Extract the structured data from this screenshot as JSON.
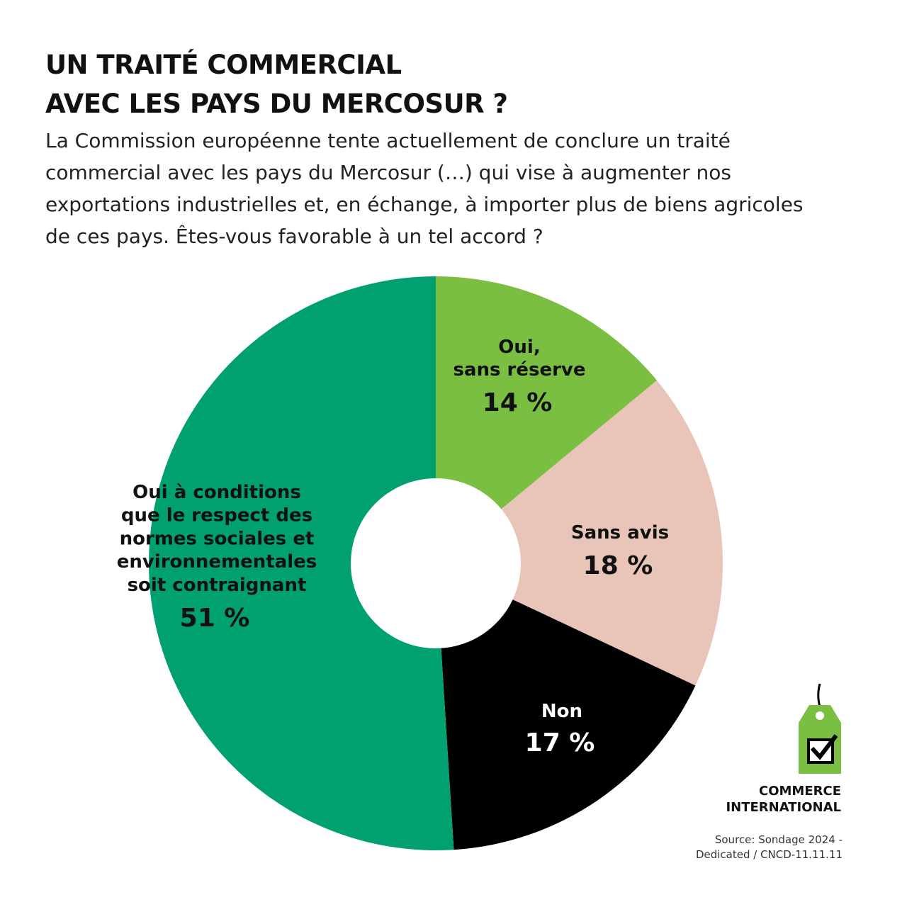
{
  "chart_data": {
    "type": "donut",
    "title": "UN TRAITÉ COMMERCIAL\nAVEC LES PAYS DU MERCOSUR ?",
    "subtitle": "La Commission européenne tente actuellement de conclure un traité commercial avec les pays du Mercosur (…) qui vise à augmenter nos exportations industrielles et, en échange, à importer plus de biens agricoles de ces pays. Êtes-vous favorable à un tel accord ?",
    "categories": [
      "Oui,\nsans réserve",
      "Sans avis",
      "Non",
      "Oui à conditions\nque le respect des\nnormes sociales et\nenvironnementales\nsoit contraignant"
    ],
    "values": [
      14,
      18,
      17,
      51
    ],
    "value_labels": [
      "14 %",
      "18 %",
      "17 %",
      "51 %"
    ],
    "colors": [
      "#7bbf42",
      "#e8c5b8",
      "#000000",
      "#00a070"
    ],
    "logo_text": "COMMERCE\nINTERNATIONAL",
    "source": "Source: Sondage 2024 -\nDedicated /  CNCD-11.11.11"
  }
}
